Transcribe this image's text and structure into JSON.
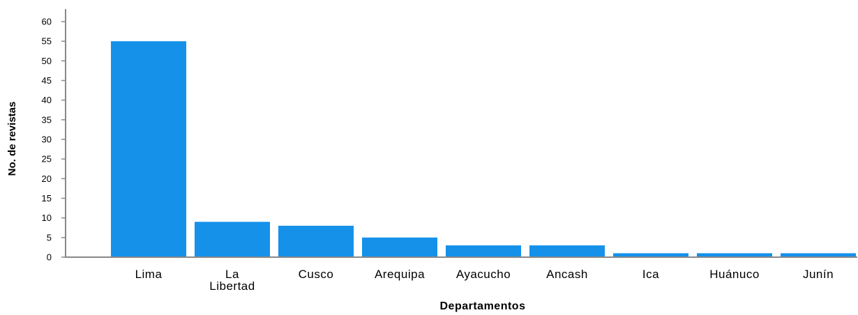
{
  "chart_data": {
    "type": "bar",
    "categories": [
      "Lima",
      "La Libertad",
      "Cusco",
      "Arequipa",
      "Ayacucho",
      "Ancash",
      "Ica",
      "Huánuco",
      "Junín"
    ],
    "category_lines": [
      [
        "Lima"
      ],
      [
        "La",
        "Libertad"
      ],
      [
        "Cusco"
      ],
      [
        "Arequipa"
      ],
      [
        "Ayacucho"
      ],
      [
        "Ancash"
      ],
      [
        "Ica"
      ],
      [
        "Huánuco"
      ],
      [
        "Junín"
      ]
    ],
    "values": [
      55,
      9,
      8,
      5,
      3,
      3,
      1,
      1,
      1
    ],
    "xlabel": "Departamentos",
    "ylabel": "No. de revistas",
    "ylim": [
      0,
      60
    ],
    "yticks": [
      0,
      5,
      10,
      15,
      20,
      25,
      30,
      35,
      40,
      45,
      50,
      55,
      60
    ],
    "grid": false,
    "bar_color": "#1591ea",
    "axis_color": "#888888"
  }
}
